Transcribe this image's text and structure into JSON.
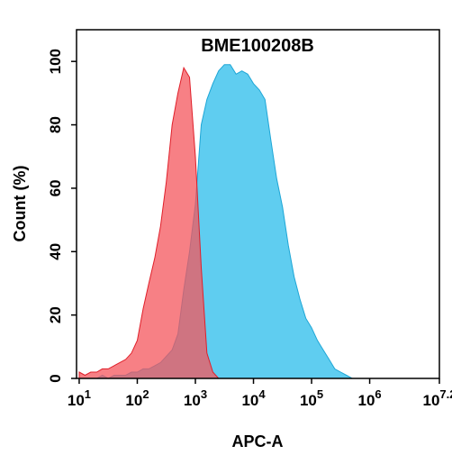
{
  "chart_data": {
    "type": "area",
    "title": "BME100208B",
    "xlabel": "APC-A",
    "ylabel": "Count  (%)",
    "xscale": "log",
    "xlim": [
      9,
      15848932
    ],
    "xticks": [
      {
        "value": 10,
        "label": "10^1"
      },
      {
        "value": 100,
        "label": "10^2"
      },
      {
        "value": 1000,
        "label": "10^3"
      },
      {
        "value": 10000,
        "label": "10^4"
      },
      {
        "value": 100000,
        "label": "10^5"
      },
      {
        "value": 1000000,
        "label": "10^6"
      },
      {
        "value": 15848932,
        "label": "10^7.2"
      }
    ],
    "ylim": [
      0,
      110
    ],
    "yticks": [
      0,
      20,
      40,
      60,
      80,
      100
    ],
    "x": [
      10,
      12.6,
      15.8,
      20,
      25.1,
      31.6,
      39.8,
      50.1,
      63.1,
      79.4,
      100,
      126,
      158,
      200,
      251,
      316,
      398,
      501,
      631,
      794,
      1000,
      1260,
      1580,
      2000,
      2510,
      3160,
      3980,
      5010,
      6310,
      7940,
      10000,
      12600,
      15800,
      20000,
      25100,
      31600,
      39800,
      50100,
      63100,
      79400,
      100000,
      126000,
      158000,
      200000,
      251000,
      316000,
      398000,
      501000,
      631000,
      794000
    ],
    "series": [
      {
        "color": "#5fcdf0",
        "stroke": "#1ea6d6",
        "opacity": 1,
        "values": [
          0,
          0,
          0,
          0,
          1,
          0,
          1,
          1,
          1,
          2,
          2,
          3,
          3,
          4,
          5,
          7,
          9,
          14,
          28,
          40,
          55,
          80,
          88,
          93,
          97,
          99,
          99,
          96,
          97,
          96,
          93,
          91,
          88,
          75,
          63,
          54,
          42,
          32,
          25,
          19,
          16,
          12,
          9,
          6,
          3,
          2,
          1,
          0,
          0,
          0
        ]
      },
      {
        "color": "#f4555c",
        "stroke": "#e01f2a",
        "opacity": 0.75,
        "values": [
          2,
          1,
          2,
          2,
          3,
          3,
          4,
          5,
          6,
          8,
          12,
          22,
          30,
          38,
          48,
          62,
          80,
          90,
          98,
          95,
          70,
          35,
          8,
          2,
          0,
          0,
          0,
          0,
          0,
          0,
          0,
          0,
          0,
          0,
          0,
          0,
          0,
          0,
          0,
          0,
          0,
          0,
          0,
          0,
          0,
          0,
          0,
          0,
          0,
          0
        ]
      }
    ]
  }
}
